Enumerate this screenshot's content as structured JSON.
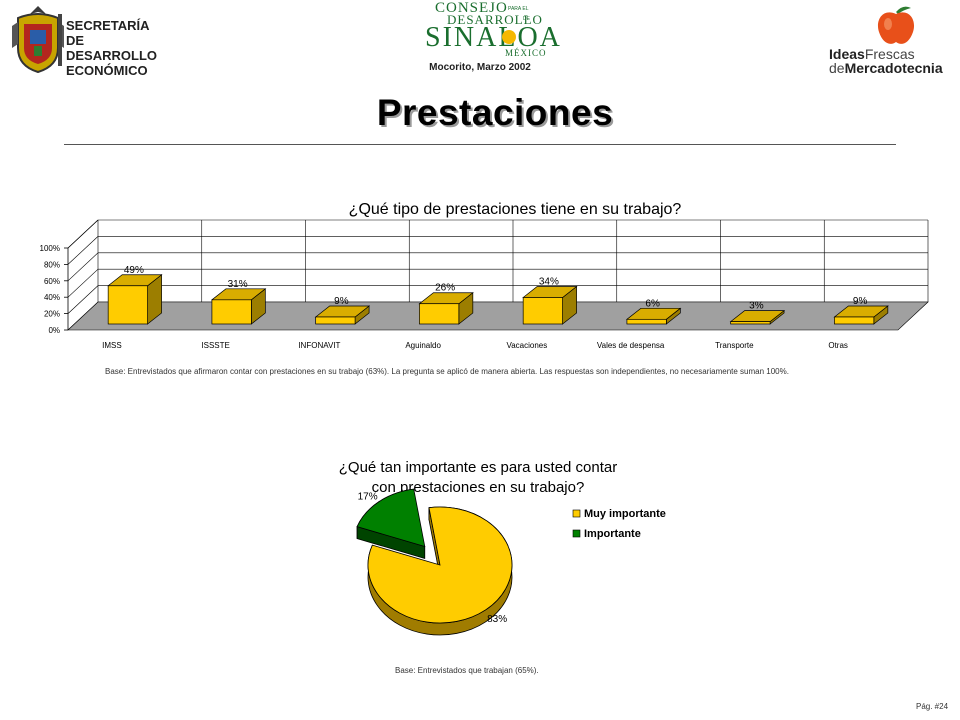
{
  "header": {
    "secretaria_lines": [
      "SECRETARÍA",
      "DE DESARROLLO",
      "ECONÓMICO"
    ],
    "consejo_lines": [
      "CONSEJO",
      "DESARROLLO",
      "SINALOA",
      "MÉXICO"
    ],
    "consejo_small": [
      "PARA EL",
      "DE"
    ],
    "location_date": "Mocorito, Marzo 2002",
    "brand_right": {
      "ideas": "Ideas",
      "frescas": "Frescas",
      "de": "de",
      "mercadotecnia": "Mercadotecnia"
    }
  },
  "page_title": "Prestaciones",
  "chart_data": [
    {
      "type": "bar",
      "title": "¿Qué tipo de prestaciones tiene en su trabajo?",
      "categories": [
        "IMSS",
        "ISSSTE",
        "INFONAVIT",
        "Aguinaldo",
        "Vacaciones",
        "Vales de despensa",
        "Transporte",
        "Otras"
      ],
      "values": [
        49,
        31,
        9,
        26,
        34,
        6,
        3,
        9
      ],
      "value_labels": [
        "49%",
        "31%",
        "9%",
        "26%",
        "34%",
        "6%",
        "3%",
        "9%"
      ],
      "yticks": [
        "0%",
        "20%",
        "40%",
        "60%",
        "80%",
        "100%"
      ],
      "ylim": [
        0,
        100
      ],
      "grid": true,
      "colors": {
        "bar": "#ffcc00",
        "bar_side": "#9c7e00",
        "bar_top": "#d9ad00",
        "floor": "#a0a0a0"
      }
    },
    {
      "type": "pie",
      "title_lines": [
        "¿Qué tan importante es para usted contar",
        "con prestaciones en su trabajo?"
      ],
      "slices": [
        {
          "label": "Muy importante",
          "value": 83,
          "value_label": "83%",
          "color": "#ffcc00",
          "side_color": "#a07c00"
        },
        {
          "label": "Importante",
          "value": 17,
          "value_label": "17%",
          "color": "#008000",
          "side_color": "#004400"
        }
      ],
      "legend": "right"
    }
  ],
  "footnotes": {
    "bar": "Base: Entrevistados que afirmaron contar con prestaciones en su trabajo (63%). La pregunta se aplicó de manera abierta. Las respuestas son independientes, no necesariamente suman 100%.",
    "pie": "Base:   Entrevistados que trabajan (65%)."
  },
  "page_number": "Pág. #24"
}
